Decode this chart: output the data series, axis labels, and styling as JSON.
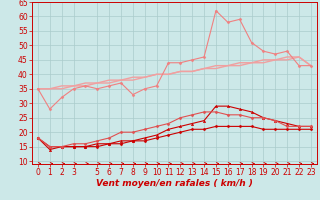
{
  "x": [
    0,
    1,
    2,
    3,
    4,
    5,
    6,
    7,
    8,
    9,
    10,
    11,
    12,
    13,
    14,
    15,
    16,
    17,
    18,
    19,
    20,
    21,
    22,
    23
  ],
  "series": [
    {
      "name": "line1_dark_red_flat",
      "color": "#cc0000",
      "lw": 0.8,
      "marker": "D",
      "markersize": 1.5,
      "y": [
        18,
        15,
        15,
        15,
        15,
        15,
        16,
        16,
        17,
        17,
        18,
        19,
        20,
        21,
        21,
        22,
        22,
        22,
        22,
        21,
        21,
        21,
        21,
        21
      ]
    },
    {
      "name": "line2_dark_red_triangle",
      "color": "#cc0000",
      "lw": 0.8,
      "marker": "^",
      "markersize": 1.8,
      "y": [
        18,
        14,
        15,
        15,
        15,
        16,
        16,
        17,
        17,
        18,
        19,
        21,
        22,
        23,
        24,
        29,
        29,
        28,
        27,
        25,
        24,
        23,
        22,
        22
      ]
    },
    {
      "name": "line3_medium_red",
      "color": "#e05050",
      "lw": 0.8,
      "marker": "D",
      "markersize": 1.5,
      "y": [
        18,
        15,
        15,
        16,
        16,
        17,
        18,
        20,
        20,
        21,
        22,
        23,
        25,
        26,
        27,
        27,
        26,
        26,
        25,
        25,
        24,
        22,
        22,
        22
      ]
    },
    {
      "name": "line4_light_pink_linear",
      "color": "#f0a0a0",
      "lw": 1.0,
      "marker": null,
      "markersize": 0,
      "y": [
        35,
        35,
        36,
        36,
        37,
        37,
        38,
        38,
        39,
        39,
        40,
        40,
        41,
        41,
        42,
        42,
        43,
        43,
        44,
        44,
        45,
        45,
        46,
        43
      ]
    },
    {
      "name": "line5_light_pink_linear2",
      "color": "#f0a0a0",
      "lw": 1.0,
      "marker": null,
      "markersize": 0,
      "y": [
        35,
        35,
        35,
        36,
        36,
        37,
        37,
        38,
        38,
        39,
        40,
        40,
        41,
        41,
        42,
        43,
        43,
        44,
        44,
        45,
        45,
        46,
        46,
        43
      ]
    },
    {
      "name": "line6_pink_dots",
      "color": "#f08080",
      "lw": 0.8,
      "marker": "D",
      "markersize": 1.5,
      "y": [
        35,
        28,
        32,
        35,
        36,
        35,
        36,
        37,
        33,
        35,
        36,
        44,
        44,
        45,
        46,
        62,
        58,
        59,
        51,
        48,
        47,
        48,
        43,
        43
      ]
    }
  ],
  "ylim": [
    9,
    65
  ],
  "yticks": [
    10,
    15,
    20,
    25,
    30,
    35,
    40,
    45,
    50,
    55,
    60,
    65
  ],
  "xlim": [
    -0.5,
    23.5
  ],
  "xticks": [
    0,
    1,
    2,
    3,
    5,
    6,
    7,
    8,
    9,
    10,
    11,
    12,
    13,
    14,
    15,
    16,
    17,
    18,
    19,
    20,
    21,
    22,
    23
  ],
  "xlabel": "Vent moyen/en rafales ( km/h )",
  "bg_color": "#cce8e8",
  "grid_color": "#aacccc",
  "text_color": "#cc0000",
  "label_fontsize": 6.5,
  "tick_fontsize": 5.5
}
